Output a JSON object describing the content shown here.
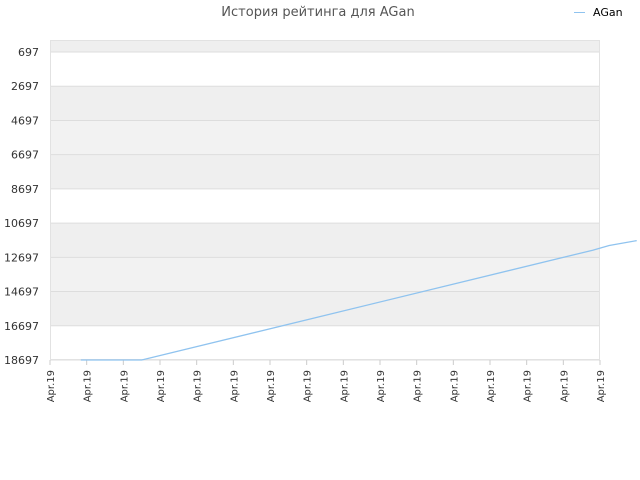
{
  "chart_data": {
    "type": "line",
    "title": "История рейтинга для AGan",
    "xlabel": "",
    "ylabel": "",
    "y_inverted": true,
    "ylim": [
      18697,
      697
    ],
    "y_ticks": [
      "697",
      "2697",
      "4697",
      "6697",
      "8697",
      "10697",
      "12697",
      "14697",
      "16697",
      "18697"
    ],
    "x_tick_labels": [
      "Apr.19",
      "Apr.19",
      "Apr.19",
      "Apr.19",
      "Apr.19",
      "Apr.19",
      "Apr.19",
      "Apr.19",
      "Apr.19",
      "Apr.19",
      "Apr.19",
      "Apr.19",
      "Apr.19",
      "Apr.19",
      "Apr.19",
      "Apr.19"
    ],
    "grid": true,
    "legend_position": "top-right",
    "series": [
      {
        "name": "AGan",
        "color": "#8fc3ef",
        "x": [
          0.84,
          2.5,
          14.8,
          15.25,
          16
        ],
        "y": [
          18697,
          18697,
          12282,
          12004,
          11717
        ]
      }
    ]
  }
}
